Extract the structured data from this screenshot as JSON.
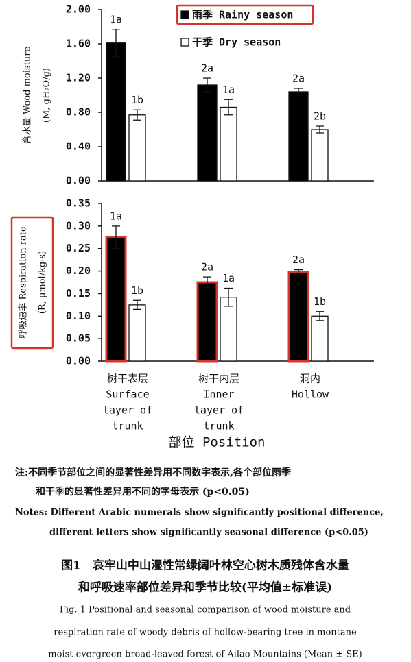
{
  "chart_data": [
    {
      "type": "bar",
      "y_label": [
        "含水量 Wood moisture",
        "(M, gH₂O/g)"
      ],
      "categories": [
        null,
        null,
        null
      ],
      "series": [
        {
          "name": "雨季 Rainy season",
          "color": "#000000",
          "values": [
            1.61,
            1.12,
            1.04
          ],
          "errors": [
            0.16,
            0.08,
            0.04
          ],
          "letters": [
            "1a",
            "2a",
            "2a"
          ]
        },
        {
          "name": "干季 Dry season",
          "color": "#ffffff",
          "values": [
            0.77,
            0.86,
            0.6
          ],
          "errors": [
            0.06,
            0.09,
            0.04
          ],
          "letters": [
            "1b",
            "1a",
            "2b"
          ]
        }
      ],
      "ylim": [
        0,
        2
      ],
      "yticks": [
        {
          "value": 0,
          "label": "0.00"
        },
        {
          "value": 0.4,
          "label": "0.40"
        },
        {
          "value": 0.8,
          "label": "0.80"
        },
        {
          "value": 1.2,
          "label": "1.20"
        },
        {
          "value": 1.6,
          "label": "1.60"
        },
        {
          "value": 2,
          "label": "2.00"
        }
      ]
    },
    {
      "type": "bar",
      "y_label": [
        "呼吸速率 Respiration rate",
        "(R, μmol/kg·s)"
      ],
      "x_label": "部位 Position",
      "categories": [
        [
          "树干表层",
          "Surface",
          "layer of",
          "trunk"
        ],
        [
          "树干内层",
          "Inner",
          "layer of",
          "trunk"
        ],
        [
          "洞内",
          "Hollow"
        ]
      ],
      "series": [
        {
          "color": "#000000",
          "values": [
            0.275,
            0.175,
            0.197
          ],
          "errors": [
            0.025,
            0.012,
            0.006
          ],
          "letters": [
            "1a",
            "2a",
            "2a"
          ]
        },
        {
          "color": "#ffffff",
          "values": [
            0.125,
            0.142,
            0.1
          ],
          "errors": [
            0.01,
            0.02,
            0.01
          ],
          "letters": [
            "1b",
            "1a",
            "1b"
          ]
        }
      ],
      "ylim": [
        0,
        0.35
      ],
      "yticks": [
        {
          "value": 0,
          "label": "0.00"
        },
        {
          "value": 0.05,
          "label": "0.05"
        },
        {
          "value": 0.1,
          "label": "0.10"
        },
        {
          "value": 0.15,
          "label": "0.15"
        },
        {
          "value": 0.2,
          "label": "0.20"
        },
        {
          "value": 0.25,
          "label": "0.25"
        },
        {
          "value": 0.3,
          "label": "0.30"
        },
        {
          "value": 0.35,
          "label": "0.35"
        }
      ]
    }
  ],
  "notes_zh": [
    "注:不同季节部位之间的显著性差异用不同数字表示,各个部位雨季",
    "和干季的显著性差异用不同的字母表示 (p<0.05)"
  ],
  "notes_en": [
    "Notes: Different Arabic numerals show significantly positional difference,",
    "different letters show significantly seasonal difference (p<0.05)"
  ],
  "caption_zh": [
    "图1　哀牢山中山湿性常绿阔叶林空心树木质残体含水量",
    "和呼吸速率部位差异和季节比较(平均值±标准误)"
  ],
  "caption_en": [
    "Fig. 1   Positional and seasonal comparison of wood moisture and",
    "respiration rate of woody debris of hollow-bearing tree in montane",
    "moist evergreen broad-leaved forest of Ailao Mountains (Mean ± SE)"
  ]
}
